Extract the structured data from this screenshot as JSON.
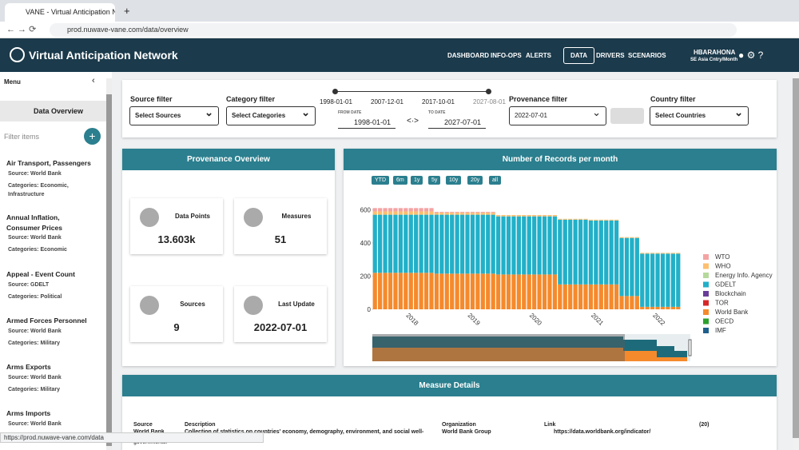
{
  "browser": {
    "tab": "VANE - Virtual Anticipation Netw",
    "url": "prod.nuwave-vane.com/data/overview",
    "status": "https://prod.nuwave-vane.com/data"
  },
  "header": {
    "title": "Virtual Anticipation Network",
    "nav": [
      "DASHBOARD",
      "INFO-OPS",
      "ALERTS",
      "DATA",
      "DRIVERS",
      "SCENARIOS"
    ],
    "user": "HBARAHONA",
    "user_sub": "SE Asia Cntry/Month"
  },
  "sidebar": {
    "menu": "Menu",
    "active": "Data Overview",
    "filter": "Filter items",
    "items": [
      {
        "title": "Air Transport, Passengers",
        "source": "Source: World Bank",
        "categories": "Categories: Economic, Infrastructure"
      },
      {
        "title": "Annual Inflation, Consumer Prices",
        "source": "Source: World Bank",
        "categories": "Categories: Economic"
      },
      {
        "title": "Appeal - Event Count",
        "source": "Source: GDELT",
        "categories": "Categories: Political"
      },
      {
        "title": "Armed Forces Personnel",
        "source": "Source: World Bank",
        "categories": "Categories: Military"
      },
      {
        "title": "Arms Exports",
        "source": "Source: World Bank",
        "categories": "Categories: Military"
      },
      {
        "title": "Arms Imports",
        "source": "Source: World Bank",
        "categories": ""
      }
    ]
  },
  "filters": {
    "source_label": "Source filter",
    "source_value": "Select Sources",
    "category_label": "Category filter",
    "category_value": "Select Categories",
    "slider_dates": [
      "1998-01-01",
      "2007-12-01",
      "2017-10-01",
      "2027-08-01"
    ],
    "from_label": "FROM DATE",
    "from_value": "1998-01-01",
    "to_label": "TO DATE",
    "to_value": "2027-07-01",
    "provenance_label": "Provenance filter",
    "provenance_value": "2022-07-01",
    "country_label": "Country filter",
    "country_value": "Select Countries"
  },
  "provenance": {
    "title": "Provenance Overview",
    "stats": [
      {
        "label": "Data Points",
        "value": "13.603k"
      },
      {
        "label": "Measures",
        "value": "51"
      },
      {
        "label": "Sources",
        "value": "9"
      },
      {
        "label": "Last Update",
        "value": "2022-07-01"
      }
    ]
  },
  "ranges": [
    "YTD",
    "6m",
    "1y",
    "5y",
    "10y",
    "20y",
    "all"
  ],
  "chart_data": {
    "type": "bar",
    "title": "Number of Records per month",
    "stacked": true,
    "categories": [
      null,
      null,
      null,
      null,
      null,
      null,
      "2018",
      null,
      null,
      null,
      null,
      null,
      null,
      null,
      null,
      null,
      null,
      null,
      "2019",
      null,
      null,
      null,
      null,
      null,
      null,
      null,
      null,
      null,
      null,
      null,
      "2020",
      null,
      null,
      null,
      null,
      null,
      null,
      null,
      null,
      null,
      null,
      null,
      "2021",
      null,
      null,
      null,
      null,
      null,
      null,
      null,
      null,
      null,
      null,
      null,
      "2022",
      null,
      null,
      null,
      null,
      null
    ],
    "ylim": [
      0,
      650
    ],
    "yticks": [
      0,
      200,
      400,
      600
    ],
    "series": [
      {
        "name": "IMF",
        "color": "#1f5f8b"
      },
      {
        "name": "OECD",
        "color": "#2ca02c"
      },
      {
        "name": "World Bank",
        "color": "#f58a2c",
        "values": [
          220,
          220,
          220,
          220,
          220,
          220,
          220,
          220,
          220,
          220,
          220,
          220,
          215,
          215,
          215,
          215,
          215,
          215,
          215,
          215,
          215,
          215,
          215,
          215,
          210,
          210,
          210,
          210,
          210,
          210,
          210,
          210,
          210,
          210,
          210,
          210,
          150,
          150,
          150,
          150,
          150,
          150,
          150,
          150,
          150,
          150,
          150,
          150,
          80,
          80,
          80,
          80,
          15,
          15,
          15,
          15,
          15,
          15,
          15,
          15
        ]
      },
      {
        "name": "TOR",
        "color": "#d62728"
      },
      {
        "name": "Blockchain",
        "color": "#6a3d9a"
      },
      {
        "name": "GDELT",
        "color": "#21b0c8",
        "values": [
          350,
          350,
          350,
          350,
          350,
          350,
          350,
          350,
          350,
          350,
          350,
          350,
          355,
          355,
          355,
          355,
          355,
          355,
          355,
          355,
          355,
          355,
          355,
          355,
          350,
          350,
          350,
          350,
          350,
          350,
          350,
          350,
          350,
          350,
          350,
          350,
          390,
          390,
          390,
          390,
          390,
          390,
          385,
          385,
          385,
          385,
          385,
          385,
          350,
          350,
          350,
          350,
          320,
          320,
          320,
          320,
          320,
          320,
          320,
          320
        ]
      },
      {
        "name": "Energy Info. Agency",
        "color": "#b5d99c"
      },
      {
        "name": "WHO",
        "color": "#fdbf6f",
        "values": [
          20,
          20,
          20,
          20,
          20,
          20,
          20,
          20,
          20,
          20,
          20,
          20,
          12,
          12,
          12,
          12,
          12,
          12,
          12,
          12,
          12,
          12,
          12,
          12,
          8,
          8,
          8,
          8,
          8,
          8,
          8,
          8,
          8,
          8,
          8,
          8,
          5,
          5,
          5,
          5,
          5,
          5,
          5,
          5,
          5,
          5,
          5,
          5,
          5,
          5,
          5,
          5,
          5,
          5,
          5,
          5,
          5,
          5,
          5,
          5
        ]
      },
      {
        "name": "WTO",
        "color": "#f4a3a3",
        "values": [
          20,
          20,
          20,
          20,
          20,
          20,
          20,
          20,
          20,
          20,
          20,
          20,
          5,
          5,
          5,
          5,
          5,
          5,
          5,
          5,
          5,
          5,
          5,
          5,
          0,
          0,
          0,
          0,
          0,
          0,
          0,
          0,
          0,
          0,
          0,
          0,
          0,
          0,
          0,
          0,
          0,
          0,
          0,
          0,
          0,
          0,
          0,
          0,
          0,
          0,
          0,
          0,
          0,
          0,
          0,
          0,
          0,
          0,
          0,
          0
        ]
      }
    ]
  },
  "details": {
    "title": "Measure Details",
    "columns": [
      "Source",
      "Description",
      "Organization",
      "Link",
      "(20)"
    ],
    "row": [
      "World Bank",
      "Collection of statistics on countries' economy, demography, environment, and social well-",
      "World Bank Group",
      "https://data.worldbank.org/indicator/"
    ],
    "row_more": "governments."
  }
}
